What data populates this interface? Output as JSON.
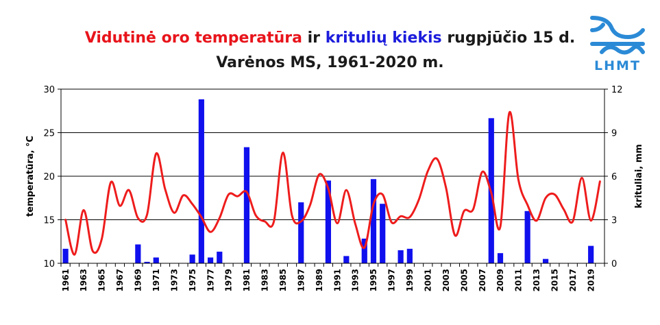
{
  "title": {
    "part1": "Vidutinė oro temperatūra",
    "part2": " ir ",
    "part3": "kritulių kiekis",
    "part4": " rugpjūčio 15 d.",
    "line2": "Varėnos MS, 1961-2020 m."
  },
  "logo": {
    "text": "LHMT",
    "color": "#2b8ad6"
  },
  "colors": {
    "temperature": "#ee1c1c",
    "precipitation": "#1010ee",
    "grid": "#000000"
  },
  "chart_data": {
    "type": "bar+line",
    "xlabel": "",
    "ylabel_left": "temperatūra, °C",
    "ylabel_right": "krituliai, mm",
    "ylim_left": [
      10,
      30
    ],
    "ylim_right": [
      0,
      12
    ],
    "yticks_left": [
      10,
      15,
      20,
      25,
      30
    ],
    "yticks_right": [
      0,
      3,
      6,
      9,
      12
    ],
    "years": [
      1961,
      1962,
      1963,
      1964,
      1965,
      1966,
      1967,
      1968,
      1969,
      1970,
      1971,
      1972,
      1973,
      1974,
      1975,
      1976,
      1977,
      1978,
      1979,
      1980,
      1981,
      1982,
      1983,
      1984,
      1985,
      1986,
      1987,
      1988,
      1989,
      1990,
      1991,
      1992,
      1993,
      1994,
      1995,
      1996,
      1997,
      1998,
      1999,
      2000,
      2001,
      2002,
      2003,
      2004,
      2005,
      2006,
      2007,
      2008,
      2009,
      2010,
      2011,
      2012,
      2013,
      2014,
      2015,
      2016,
      2017,
      2018,
      2019,
      2020
    ],
    "xtick_labels": [
      "1961",
      "1963",
      "1965",
      "1967",
      "1969",
      "1971",
      "1973",
      "1975",
      "1977",
      "1979",
      "1981",
      "1983",
      "1985",
      "1987",
      "1989",
      "1991",
      "1993",
      "1995",
      "1997",
      "1999",
      "2001",
      "2003",
      "2005",
      "2007",
      "2009",
      "2011",
      "2013",
      "2015",
      "2017",
      "2019"
    ],
    "series": [
      {
        "name": "temperatūra",
        "axis": "left",
        "kind": "line",
        "values": [
          15.0,
          11.0,
          16.1,
          11.4,
          12.8,
          19.3,
          16.6,
          18.4,
          15.2,
          15.6,
          22.6,
          18.5,
          15.8,
          17.8,
          16.8,
          15.3,
          13.6,
          15.2,
          17.9,
          17.7,
          18.2,
          15.5,
          14.8,
          14.8,
          22.7,
          15.5,
          14.8,
          16.7,
          20.2,
          18.6,
          14.6,
          18.4,
          14.5,
          11.8,
          16.8,
          17.9,
          14.7,
          15.4,
          15.3,
          17.3,
          20.6,
          22.0,
          18.7,
          13.2,
          16.0,
          16.2,
          20.5,
          18.1,
          14.2,
          27.3,
          19.6,
          16.7,
          14.9,
          17.5,
          17.9,
          16.2,
          14.8,
          19.8,
          14.9,
          19.4
        ]
      },
      {
        "name": "krituliai",
        "axis": "right",
        "kind": "bar",
        "values": [
          1.0,
          0,
          0,
          0,
          0,
          0,
          0,
          0,
          1.3,
          0.1,
          0.4,
          0,
          0,
          0,
          0.6,
          11.3,
          0.4,
          0.8,
          0,
          0,
          8.0,
          0,
          0,
          0,
          0,
          0,
          4.2,
          0,
          0,
          5.7,
          0,
          0.5,
          0,
          1.7,
          5.8,
          4.1,
          0,
          0.9,
          1.0,
          0,
          0,
          0,
          0,
          0,
          0,
          0,
          0,
          10.0,
          0.7,
          0,
          0,
          3.6,
          0,
          0.3,
          0,
          0,
          0,
          0,
          1.2,
          0
        ]
      }
    ]
  }
}
